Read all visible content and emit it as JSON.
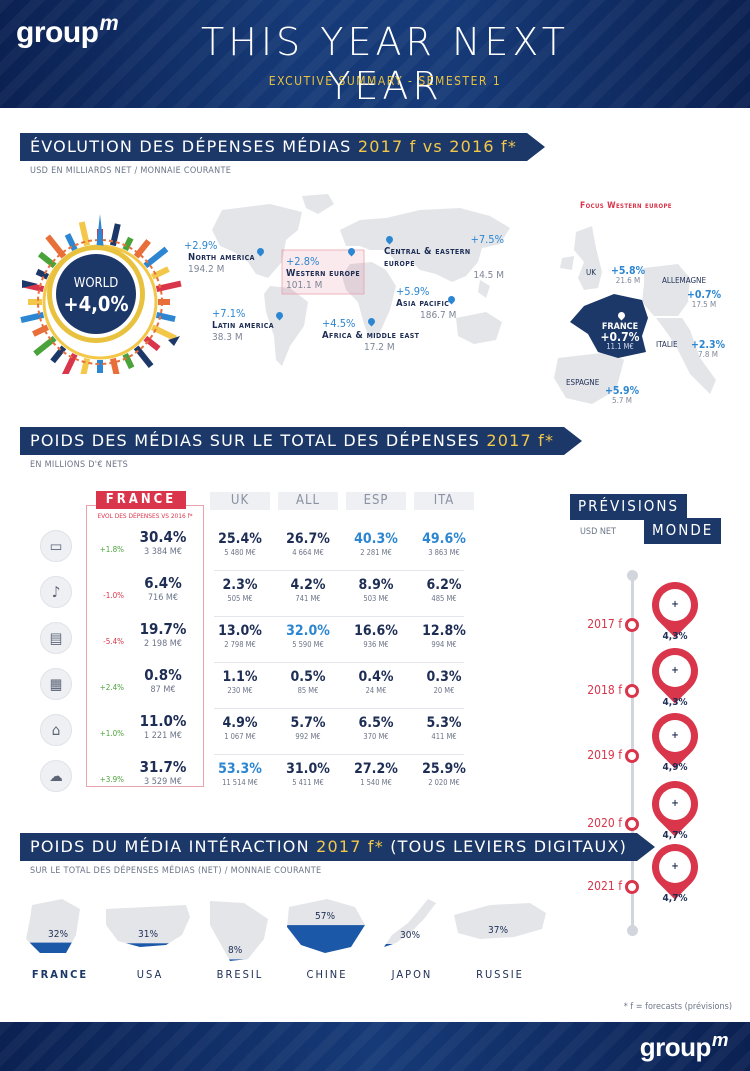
{
  "header": {
    "logo": "group",
    "logo_m": "m",
    "title": "THIS YEAR NEXT YEAR",
    "subtitle": "EXCUTIVE SUMMARY - SEMESTER 1"
  },
  "section1": {
    "title_prefix": "ÉVOLUTION DES DÉPENSES MÉDIAS",
    "title_highlight": "2017 f vs 2016 f*",
    "subtitle": "USD EN MILLIARDS NET / MONNAIE COURANTE",
    "world": {
      "label": "WORLD",
      "value": "+4,0%"
    },
    "regions": [
      {
        "value": "+2.9%",
        "name": "North america",
        "amount": "194.2 M"
      },
      {
        "value": "+2.8%",
        "name": "Western europe",
        "amount": "101.1 M"
      },
      {
        "value": "+7.5%",
        "name": "Central & eastern europe",
        "amount": "14.5 M"
      },
      {
        "value": "+5.9%",
        "name": "Asia pacific",
        "amount": "186.7 M"
      },
      {
        "value": "+7.1%",
        "name": "Latin america",
        "amount": "38.3 M"
      },
      {
        "value": "+4.5%",
        "name": "Africa & middle east",
        "amount": "17.2 M"
      }
    ],
    "focus_title": "Focus Western europe",
    "europe": [
      {
        "name": "UK",
        "value": "+5.8%",
        "amount": "21.6 M"
      },
      {
        "name": "ALLEMAGNE",
        "value": "+0.7%",
        "amount": "17.5 M"
      },
      {
        "name": "FRANCE",
        "value": "+0.7%",
        "amount": "11.1 M€"
      },
      {
        "name": "ITALIE",
        "value": "+2.3%",
        "amount": "7.8 M"
      },
      {
        "name": "ESPAGNE",
        "value": "+5.9%",
        "amount": "5.7 M"
      }
    ]
  },
  "section2": {
    "title_prefix": "POIDS DES MÉDIAS SUR LE TOTAL DES DÉPENSES",
    "title_highlight": "2017 f*",
    "subtitle": "EN MILLIONS D'€ NETS",
    "france_label": "FRANCE",
    "france_evol_label": "EVOL DES DÉPENSES VS 2016 f*",
    "columns": [
      "UK",
      "ALL",
      "ESP",
      "ITA"
    ],
    "rows": [
      {
        "icon": "tv-icon",
        "evol": "+1.8%",
        "fr_pct": "30.4%",
        "fr_amt": "3 384 M€",
        "cells": [
          {
            "pct": "25.4%",
            "amt": "5 480 M€"
          },
          {
            "pct": "26.7%",
            "amt": "4 664 M€"
          },
          {
            "pct": "40.3%",
            "amt": "2 281 M€",
            "hl": true
          },
          {
            "pct": "49.6%",
            "amt": "3 863 M€",
            "hl": true
          }
        ]
      },
      {
        "icon": "radio-microphone-icon",
        "evol": "-1.0%",
        "fr_pct": "6.4%",
        "fr_amt": "716 M€",
        "cells": [
          {
            "pct": "2.3%",
            "amt": "505 M€"
          },
          {
            "pct": "4.2%",
            "amt": "741 M€"
          },
          {
            "pct": "8.9%",
            "amt": "503 M€"
          },
          {
            "pct": "6.2%",
            "amt": "485 M€"
          }
        ]
      },
      {
        "icon": "press-newspaper-icon",
        "evol": "-5.4%",
        "fr_pct": "19.7%",
        "fr_amt": "2 198 M€",
        "cells": [
          {
            "pct": "13.0%",
            "amt": "2 798 M€"
          },
          {
            "pct": "32.0%",
            "amt": "5 590 M€",
            "hl": true
          },
          {
            "pct": "16.6%",
            "amt": "936 M€"
          },
          {
            "pct": "12.8%",
            "amt": "994 M€"
          }
        ]
      },
      {
        "icon": "cinema-clapper-icon",
        "evol": "+2.4%",
        "fr_pct": "0.8%",
        "fr_amt": "87 M€",
        "cells": [
          {
            "pct": "1.1%",
            "amt": "230 M€"
          },
          {
            "pct": "0.5%",
            "amt": "85 M€"
          },
          {
            "pct": "0.4%",
            "amt": "24 M€"
          },
          {
            "pct": "0.3%",
            "amt": "20 M€"
          }
        ]
      },
      {
        "icon": "outdoor-bus-stop-icon",
        "evol": "+1.0%",
        "fr_pct": "11.0%",
        "fr_amt": "1 221 M€",
        "cells": [
          {
            "pct": "4.9%",
            "amt": "1 067 M€"
          },
          {
            "pct": "5.7%",
            "amt": "992 M€"
          },
          {
            "pct": "6.5%",
            "amt": "370 M€"
          },
          {
            "pct": "5.3%",
            "amt": "411 M€"
          }
        ]
      },
      {
        "icon": "digital-cloud-icon",
        "evol": "+3.9%",
        "fr_pct": "31.7%",
        "fr_amt": "3 529 M€",
        "cells": [
          {
            "pct": "53.3%",
            "amt": "11 514 M€",
            "hl": true
          },
          {
            "pct": "31.0%",
            "amt": "5 411 M€"
          },
          {
            "pct": "27.2%",
            "amt": "1 540 M€"
          },
          {
            "pct": "25.9%",
            "amt": "2 020 M€"
          }
        ]
      }
    ]
  },
  "forecast": {
    "title1": "PRÉVISIONS",
    "title2": "MONDE",
    "subtitle": "USD NET",
    "years": [
      {
        "year": "2017 f",
        "value": "+ 4,3%"
      },
      {
        "year": "2018 f",
        "value": "+ 4,3%"
      },
      {
        "year": "2019 f",
        "value": "+ 4,9%"
      },
      {
        "year": "2020 f",
        "value": "+ 4,7%"
      },
      {
        "year": "2021 f",
        "value": "+ 4,7%"
      }
    ]
  },
  "section3": {
    "title_prefix": "POIDS DU MÉDIA INTÉRACTION",
    "title_highlight": "2017 f*",
    "title_suffix": "(TOUS LEVIERS DIGITAUX)",
    "subtitle": "SUR LE TOTAL DES DÉPENSES MÉDIAS (NET) / MONNAIE COURANTE",
    "countries": [
      {
        "name": "FRANCE",
        "pct": "32%",
        "share": 0.32
      },
      {
        "name": "USA",
        "pct": "31%",
        "share": 0.31
      },
      {
        "name": "BRESIL",
        "pct": "8%",
        "share": 0.08
      },
      {
        "name": "CHINE",
        "pct": "57%",
        "share": 0.57
      },
      {
        "name": "JAPON",
        "pct": "30%",
        "share": 0.3
      },
      {
        "name": "RUSSIE",
        "pct": "37%",
        "share": 0.37
      }
    ]
  },
  "footer": {
    "footnote": "* f = forecasts (prévisions)",
    "logo": "group",
    "logo_m": "m"
  },
  "colors": {
    "navy": "#1c3868",
    "accent_yellow": "#f3c84a",
    "accent_red": "#d9354b",
    "accent_blue": "#2c86d1",
    "positive_green": "#4aa33a"
  }
}
